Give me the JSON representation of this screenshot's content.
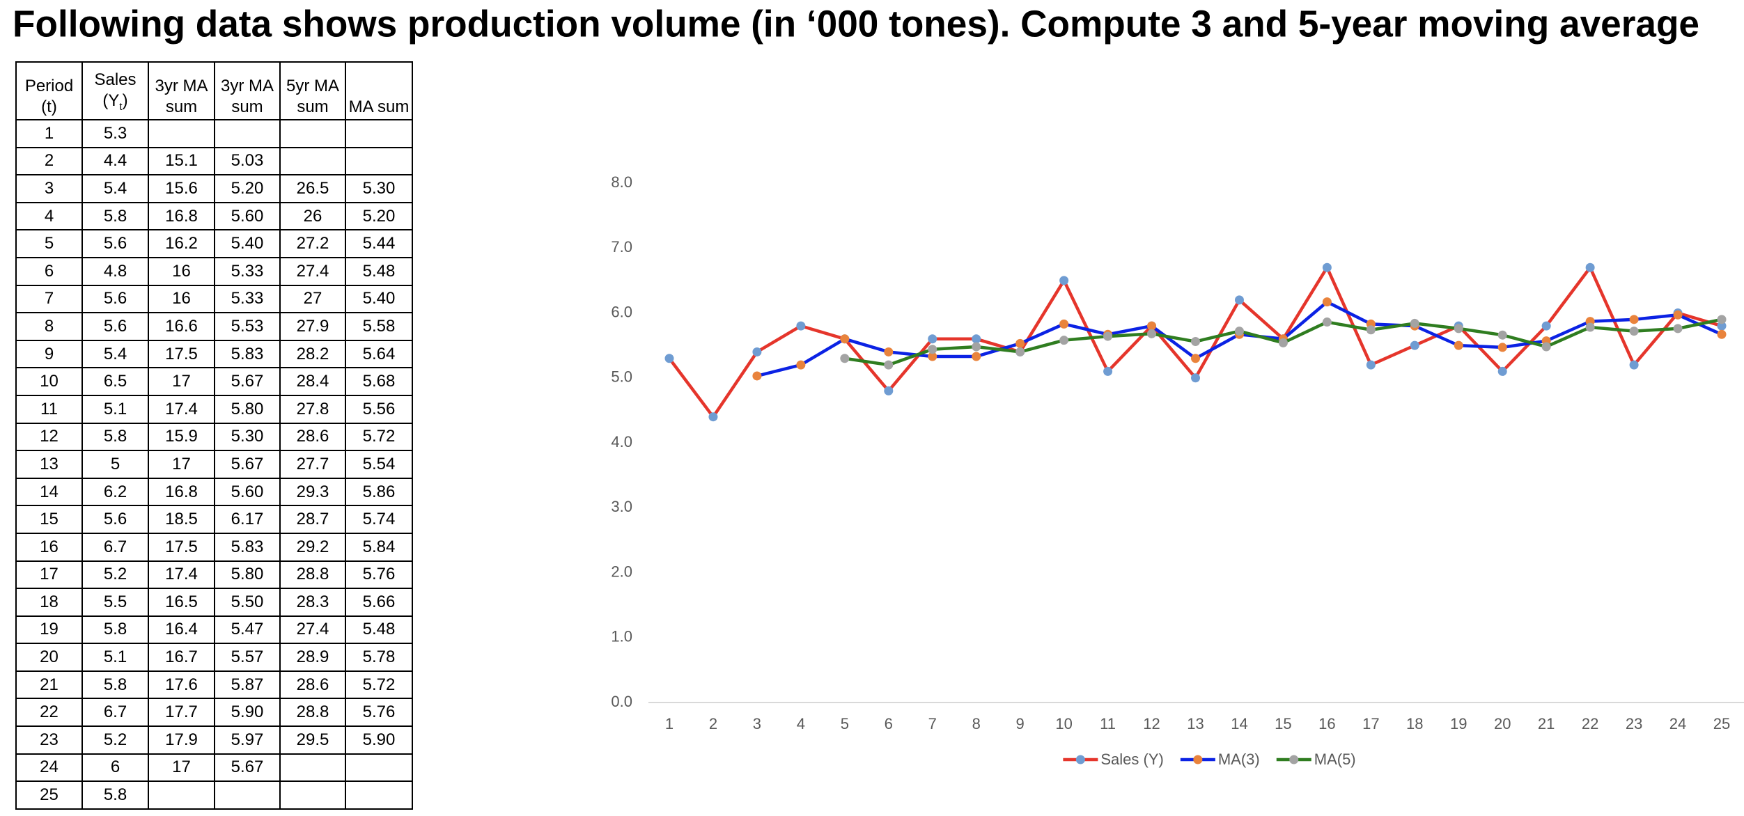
{
  "title": "Following data shows production volume (in ‘000 tones). Compute 3 and 5-year moving average",
  "table": {
    "headers": [
      [
        "Period",
        "(t)"
      ],
      [
        "Sales",
        "(Y",
        "t",
        ")"
      ],
      [
        "3yr MA",
        "sum"
      ],
      [
        "3yr MA",
        "sum"
      ],
      [
        "5yr MA",
        "sum"
      ],
      [
        "MA sum"
      ]
    ],
    "rows": [
      [
        "1",
        "5.3",
        null,
        null,
        null,
        null
      ],
      [
        "2",
        "4.4",
        "15.1",
        "5.03",
        null,
        null
      ],
      [
        "3",
        "5.4",
        "15.6",
        "5.20",
        "26.5",
        "5.30"
      ],
      [
        "4",
        "5.8",
        "16.8",
        "5.60",
        "26",
        "5.20"
      ],
      [
        "5",
        "5.6",
        "16.2",
        "5.40",
        "27.2",
        "5.44"
      ],
      [
        "6",
        "4.8",
        "16",
        "5.33",
        "27.4",
        "5.48"
      ],
      [
        "7",
        "5.6",
        "16",
        "5.33",
        "27",
        "5.40"
      ],
      [
        "8",
        "5.6",
        "16.6",
        "5.53",
        "27.9",
        "5.58"
      ],
      [
        "9",
        "5.4",
        "17.5",
        "5.83",
        "28.2",
        "5.64"
      ],
      [
        "10",
        "6.5",
        "17",
        "5.67",
        "28.4",
        "5.68"
      ],
      [
        "11",
        "5.1",
        "17.4",
        "5.80",
        "27.8",
        "5.56"
      ],
      [
        "12",
        "5.8",
        "15.9",
        "5.30",
        "28.6",
        "5.72"
      ],
      [
        "13",
        "5",
        "17",
        "5.67",
        "27.7",
        "5.54"
      ],
      [
        "14",
        "6.2",
        "16.8",
        "5.60",
        "29.3",
        "5.86"
      ],
      [
        "15",
        "5.6",
        "18.5",
        "6.17",
        "28.7",
        "5.74"
      ],
      [
        "16",
        "6.7",
        "17.5",
        "5.83",
        "29.2",
        "5.84"
      ],
      [
        "17",
        "5.2",
        "17.4",
        "5.80",
        "28.8",
        "5.76"
      ],
      [
        "18",
        "5.5",
        "16.5",
        "5.50",
        "28.3",
        "5.66"
      ],
      [
        "19",
        "5.8",
        "16.4",
        "5.47",
        "27.4",
        "5.48"
      ],
      [
        "20",
        "5.1",
        "16.7",
        "5.57",
        "28.9",
        "5.78"
      ],
      [
        "21",
        "5.8",
        "17.6",
        "5.87",
        "28.6",
        "5.72"
      ],
      [
        "22",
        "6.7",
        "17.7",
        "5.90",
        "28.8",
        "5.76"
      ],
      [
        "23",
        "5.2",
        "17.9",
        "5.97",
        "29.5",
        "5.90"
      ],
      [
        "24",
        "6",
        "17",
        "5.67",
        null,
        null
      ],
      [
        "25",
        "5.8",
        null,
        null,
        null,
        null
      ]
    ]
  },
  "chart_data": {
    "type": "line",
    "categories": [
      "1",
      "2",
      "3",
      "4",
      "5",
      "6",
      "7",
      "8",
      "9",
      "10",
      "11",
      "12",
      "13",
      "14",
      "15",
      "16",
      "17",
      "18",
      "19",
      "20",
      "21",
      "22",
      "23",
      "24",
      "25"
    ],
    "series": [
      {
        "name": "Sales (Y)",
        "color": "#e5352b",
        "marker_color": "#6f9cd2",
        "values": [
          5.3,
          4.4,
          5.4,
          5.8,
          5.6,
          4.8,
          5.6,
          5.6,
          5.4,
          6.5,
          5.1,
          5.8,
          5,
          6.2,
          5.6,
          6.7,
          5.2,
          5.5,
          5.8,
          5.1,
          5.8,
          6.7,
          5.2,
          6,
          5.8
        ]
      },
      {
        "name": "MA(3)",
        "color": "#0b22e4",
        "marker_color": "#e9833c",
        "values": [
          null,
          null,
          5.03,
          5.2,
          5.6,
          5.4,
          5.33,
          5.33,
          5.53,
          5.83,
          5.67,
          5.8,
          5.3,
          5.67,
          5.6,
          6.17,
          5.83,
          5.8,
          5.5,
          5.47,
          5.57,
          5.87,
          5.9,
          5.97,
          5.67
        ]
      },
      {
        "name": "MA(5)",
        "color": "#2f7d20",
        "marker_color": "#a3a3a3",
        "values": [
          null,
          null,
          null,
          null,
          5.3,
          5.2,
          5.44,
          5.48,
          5.4,
          5.58,
          5.64,
          5.68,
          5.56,
          5.72,
          5.54,
          5.86,
          5.74,
          5.84,
          5.76,
          5.66,
          5.48,
          5.78,
          5.72,
          5.76,
          5.9
        ]
      }
    ],
    "ylim": [
      0,
      8
    ],
    "yticks": [
      {
        "value": 0,
        "label": "0.0"
      },
      {
        "value": 1,
        "label": "1.0"
      },
      {
        "value": 2,
        "label": "2.0"
      },
      {
        "value": 3,
        "label": "3.0"
      },
      {
        "value": 4,
        "label": "4.0"
      },
      {
        "value": 5,
        "label": "5.0"
      },
      {
        "value": 6,
        "label": "6.0"
      },
      {
        "value": 7,
        "label": "7.0"
      },
      {
        "value": 8,
        "label": "8.0"
      }
    ],
    "grid": false,
    "legend": "bottom"
  }
}
